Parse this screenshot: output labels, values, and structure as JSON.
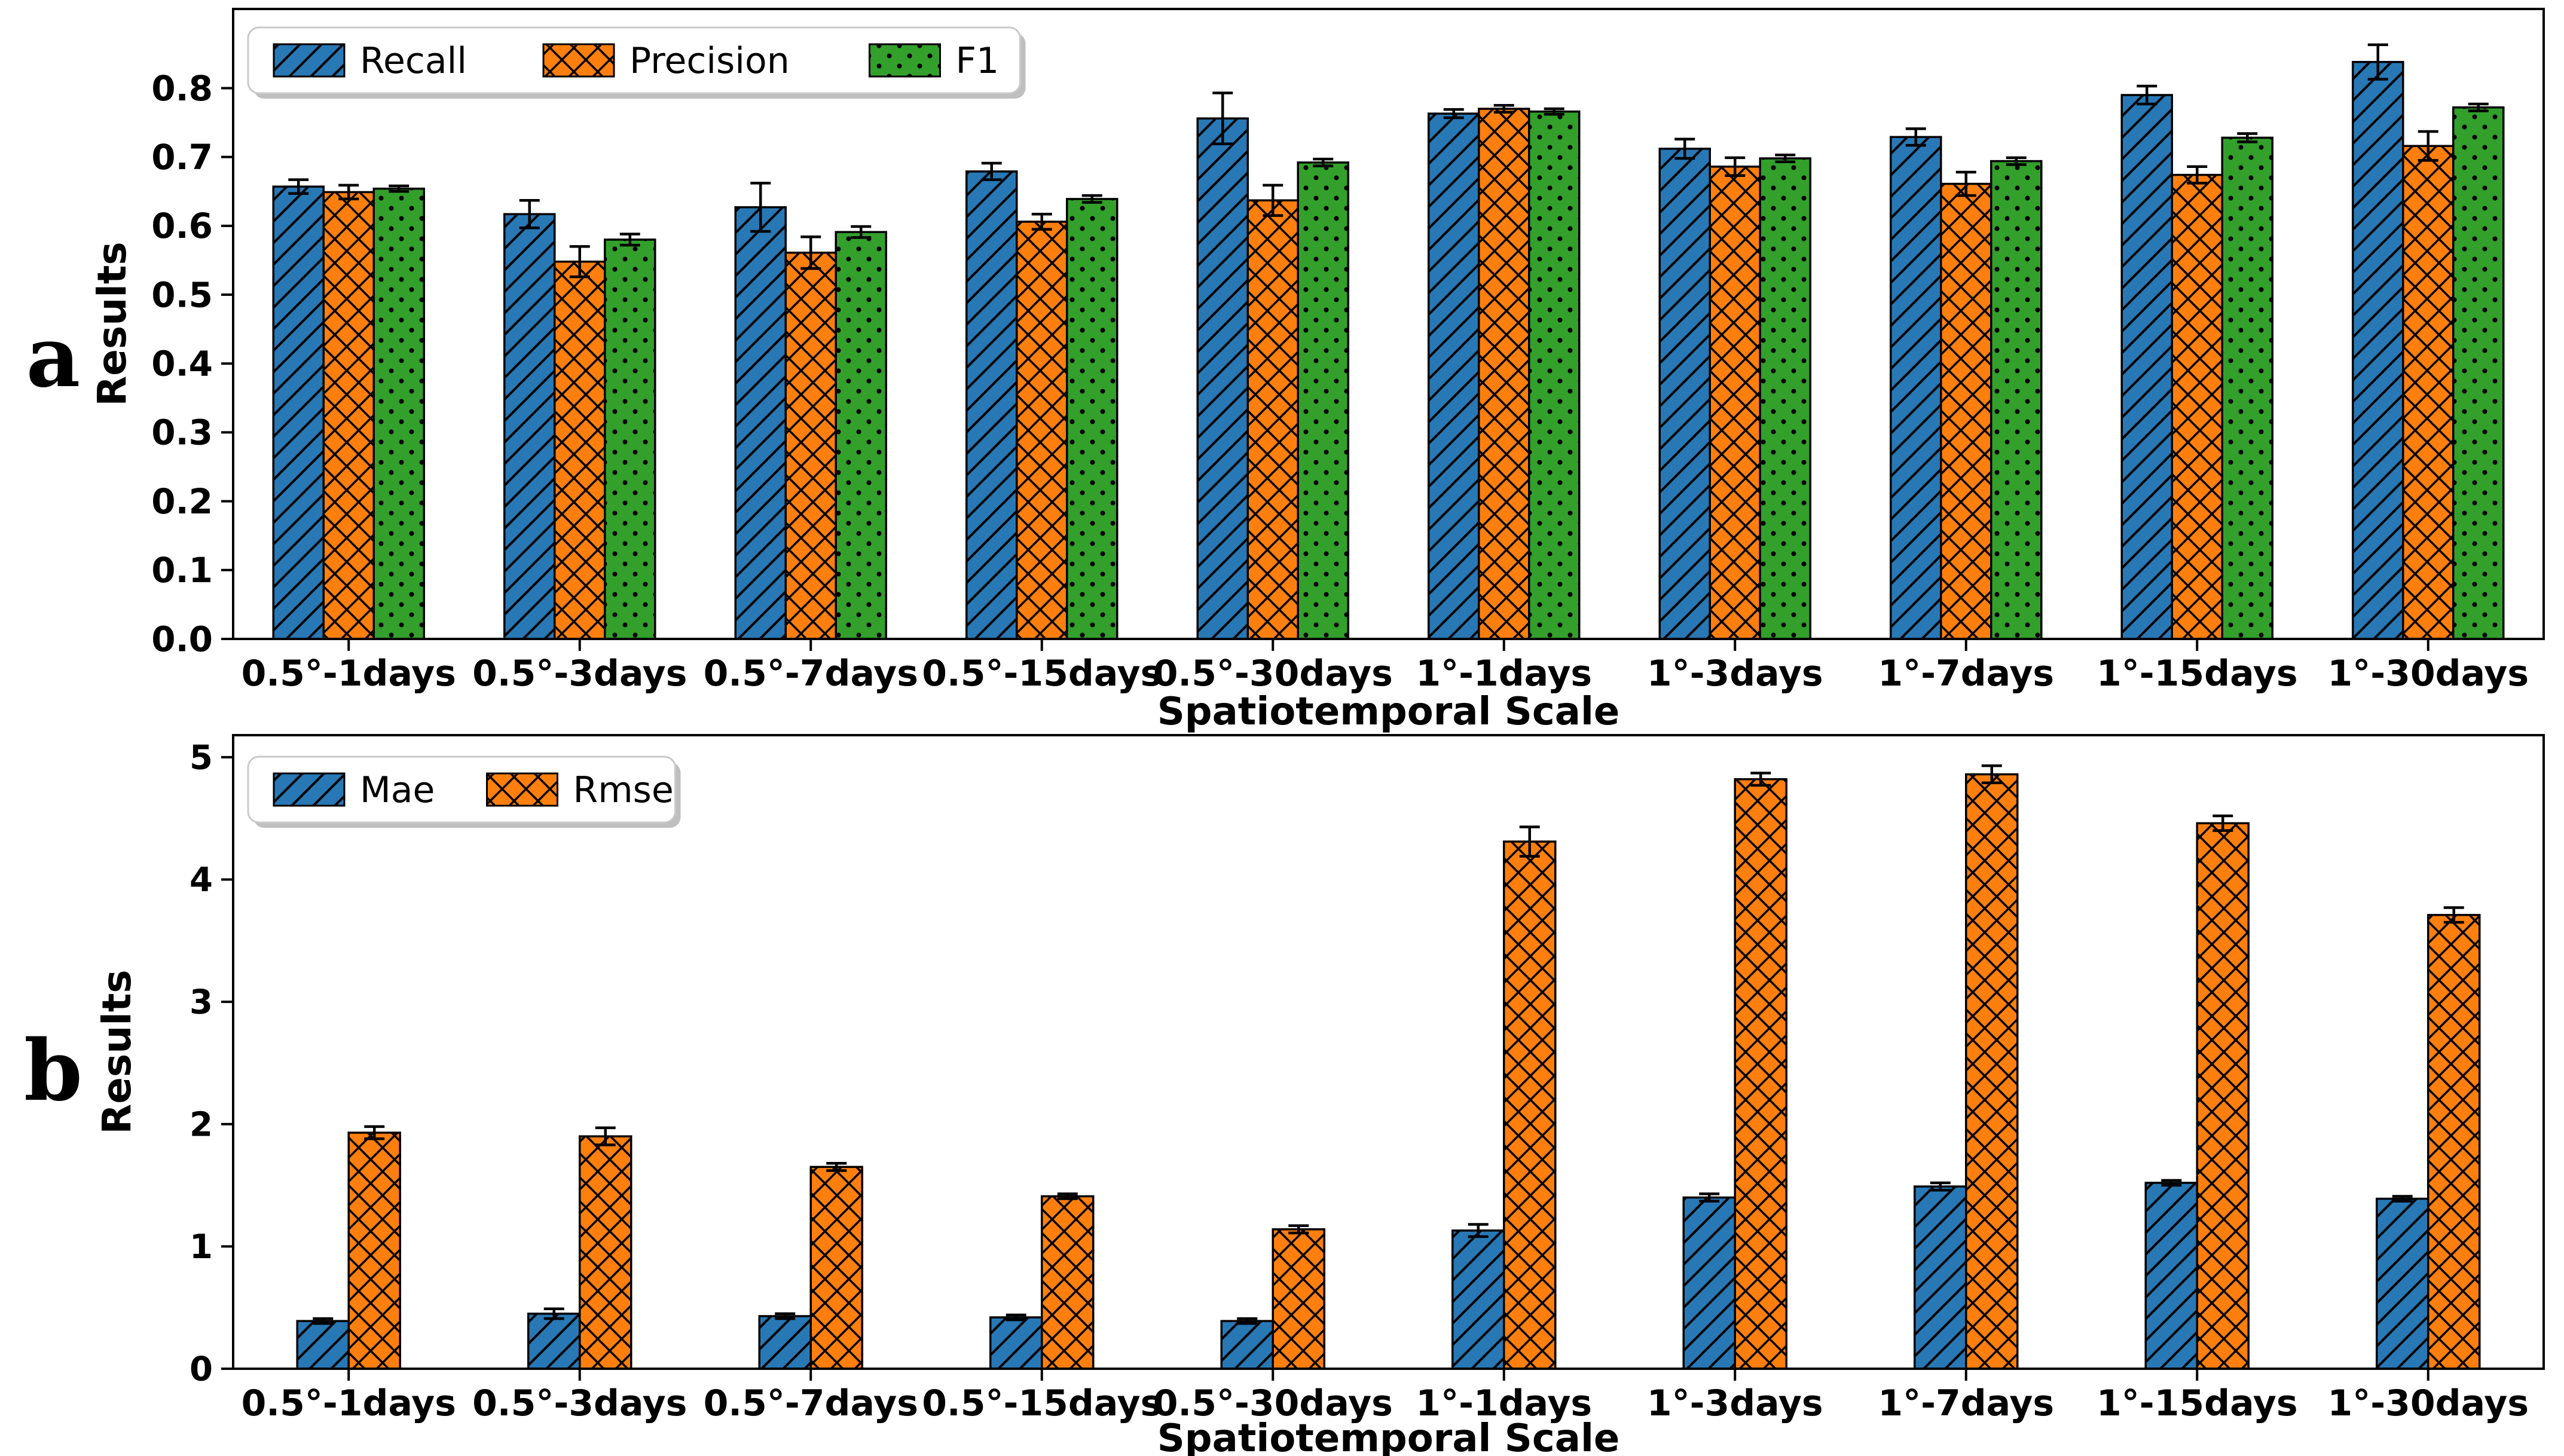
{
  "figure": {
    "background": "#ffffff",
    "bar_edge_color": "#000000",
    "error_bar_color": "#000000",
    "legend_border_color": "#c9c9c9",
    "legend_shadow_color": "#8a8a8a"
  },
  "chart_data": [
    {
      "panel_letter": "a",
      "type": "bar",
      "title": "",
      "xlabel": "Spatiotemporal Scale",
      "ylabel": "Results",
      "categories": [
        "0.5°-1days",
        "0.5°-3days",
        "0.5°-7days",
        "0.5°-15days",
        "0.5°-30days",
        "1°-1days",
        "1°-3days",
        "1°-7days",
        "1°-15days",
        "1°-30days"
      ],
      "ylim": [
        0,
        0.915
      ],
      "ytick_values": [
        0.0,
        0.1,
        0.2,
        0.3,
        0.4,
        0.5,
        0.6,
        0.7,
        0.8
      ],
      "ytick_labels": [
        "0.0",
        "0.1",
        "0.2",
        "0.3",
        "0.4",
        "0.5",
        "0.6",
        "0.7",
        "0.8"
      ],
      "legend_position": "upper left",
      "grid": false,
      "series": [
        {
          "name": "Recall",
          "color": "#2878b5",
          "hatch": "diagonal",
          "values": [
            0.657,
            0.617,
            0.627,
            0.679,
            0.756,
            0.763,
            0.712,
            0.729,
            0.79,
            0.838
          ],
          "errors": [
            0.01,
            0.02,
            0.035,
            0.012,
            0.037,
            0.006,
            0.014,
            0.012,
            0.013,
            0.025
          ]
        },
        {
          "name": "Precision",
          "color": "#ff7f0e",
          "hatch": "crosshatch",
          "values": [
            0.649,
            0.548,
            0.561,
            0.606,
            0.637,
            0.77,
            0.686,
            0.661,
            0.674,
            0.716
          ],
          "errors": [
            0.01,
            0.022,
            0.023,
            0.011,
            0.022,
            0.005,
            0.013,
            0.017,
            0.012,
            0.021
          ]
        },
        {
          "name": "F1",
          "color": "#33a02c",
          "hatch": "dots",
          "values": [
            0.654,
            0.58,
            0.591,
            0.639,
            0.692,
            0.766,
            0.698,
            0.694,
            0.728,
            0.772
          ],
          "errors": [
            0.004,
            0.008,
            0.008,
            0.005,
            0.005,
            0.004,
            0.005,
            0.005,
            0.006,
            0.005
          ]
        }
      ]
    },
    {
      "panel_letter": "b",
      "type": "bar",
      "title": "",
      "xlabel": "Spatiotemporal Scale",
      "ylabel": "Results",
      "categories": [
        "0.5°-1days",
        "0.5°-3days",
        "0.5°-7days",
        "0.5°-15days",
        "0.5°-30days",
        "1°-1days",
        "1°-3days",
        "1°-7days",
        "1°-15days",
        "1°-30days"
      ],
      "ylim": [
        0,
        5.18
      ],
      "ytick_values": [
        0,
        1,
        2,
        3,
        4,
        5
      ],
      "ytick_labels": [
        "0",
        "1",
        "2",
        "3",
        "4",
        "5"
      ],
      "legend_position": "upper left",
      "grid": false,
      "series": [
        {
          "name": "Mae",
          "color": "#2878b5",
          "hatch": "diagonal",
          "values": [
            0.39,
            0.45,
            0.43,
            0.42,
            0.39,
            1.13,
            1.4,
            1.49,
            1.52,
            1.39
          ],
          "errors": [
            0.02,
            0.04,
            0.02,
            0.02,
            0.02,
            0.05,
            0.03,
            0.03,
            0.02,
            0.02
          ]
        },
        {
          "name": "Rmse",
          "color": "#ff7f0e",
          "hatch": "crosshatch",
          "values": [
            1.93,
            1.9,
            1.65,
            1.41,
            1.14,
            4.31,
            4.82,
            4.86,
            4.46,
            3.71
          ],
          "errors": [
            0.05,
            0.07,
            0.03,
            0.02,
            0.03,
            0.12,
            0.05,
            0.07,
            0.06,
            0.06
          ]
        }
      ]
    }
  ]
}
